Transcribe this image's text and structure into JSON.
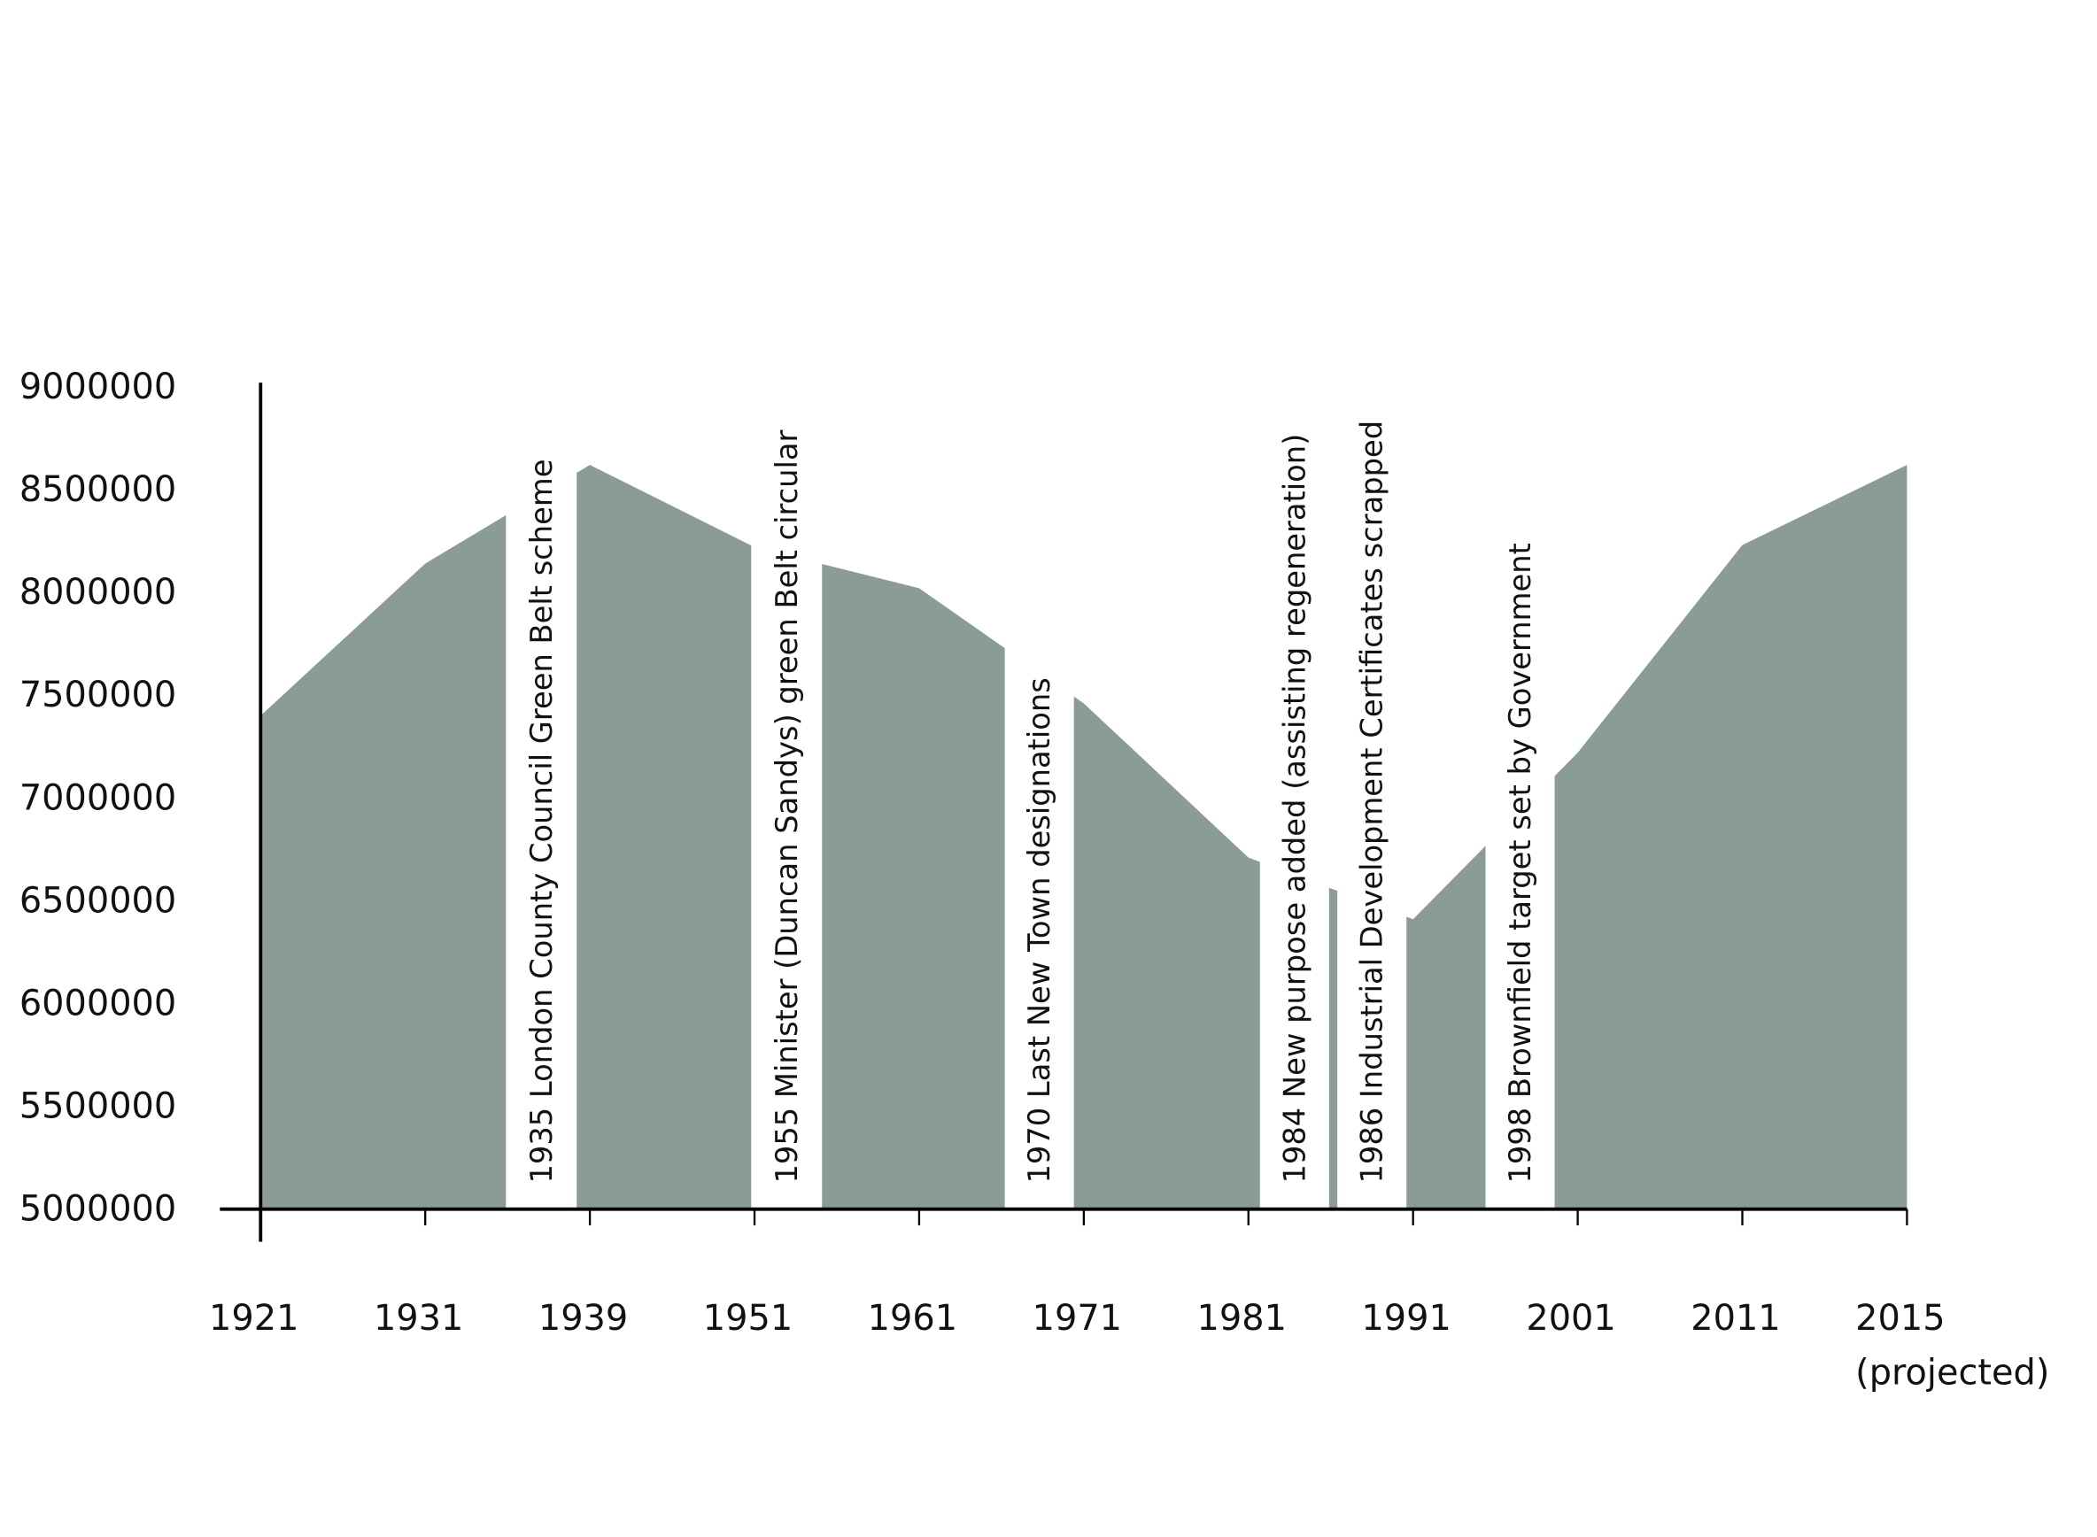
{
  "chart_data": {
    "type": "area",
    "categories": [
      "1921",
      "1931",
      "1939",
      "1951",
      "1961",
      "1971",
      "1981",
      "1991",
      "2001",
      "2011",
      "2015 (projected)"
    ],
    "values": [
      7400000,
      8140000,
      8620000,
      8220000,
      8020000,
      7460000,
      6710000,
      6410000,
      7220000,
      8230000,
      8620000
    ],
    "color": "#8a9b98",
    "ylim": [
      5000000,
      9000000
    ],
    "yticks": [
      5000000,
      5500000,
      6000000,
      6500000,
      7000000,
      7500000,
      8000000,
      8500000,
      9000000
    ],
    "annotations": [
      "1935 London County Council Green Belt scheme",
      "1955 Minister (Duncan Sandys) green Belt circular",
      "1970 Last New Town designations",
      "1984 New purpose added (assisting regeneration)",
      "1986 Industrial Development Certificates scrapped",
      "1998 Brownfield target set by Government"
    ]
  }
}
